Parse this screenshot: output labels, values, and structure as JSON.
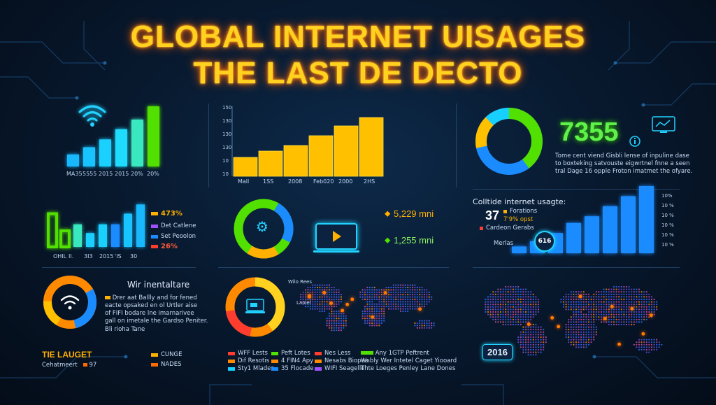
{
  "title": {
    "line1": "GLOBAL INTERNET  UISAGES",
    "line2": "THE LAST DE DECTO"
  },
  "colors": {
    "accent": "#ffd21f",
    "cyan": "#18d0ff",
    "green": "#52e000",
    "blue": "#1a8cff",
    "orange": "#ff8a00",
    "red": "#ff3d2e"
  },
  "panel_a": {
    "icon": "wifi-icon",
    "bar_values": [
      0.2,
      0.32,
      0.45,
      0.62,
      0.78,
      1.0
    ],
    "labels": [
      "MA35",
      "5555",
      "2015",
      "2015",
      "20%",
      "20%"
    ]
  },
  "panel_b": {
    "ticks": [
      "150",
      "130",
      "130",
      "130",
      "10",
      "10"
    ],
    "bar_values": [
      0.27,
      0.36,
      0.44,
      0.58,
      0.72,
      0.84
    ],
    "labels": [
      "Mall",
      "1SS",
      "2008",
      "Feb020",
      "2000",
      "2HS"
    ]
  },
  "panel_c": {
    "number": "7355",
    "text": [
      "Tome cent viend Gisbli lense of inpuline dase",
      "to boxteking satvouste eigwrtnel fnne a seen",
      "tral Dage 16 opple Froton imatmet the ofyare."
    ]
  },
  "panel_d": {
    "bar_values": [
      0.75,
      0.38,
      0.52,
      0.33,
      0.52,
      0.52,
      0.75,
      0.95
    ],
    "labels": [
      "OHIL",
      "II.",
      "3I3",
      "2015",
      "'IS",
      "30"
    ],
    "legend": [
      {
        "pct": "473%",
        "color": "#ffb000"
      },
      {
        "text": "Det Catlene",
        "color": "#a050ff"
      },
      {
        "text": "Set Peoolon",
        "color": "#1a8cff"
      },
      {
        "pct": "26%",
        "color": "#ff3d2e"
      }
    ]
  },
  "panel_e": {
    "icon": "gear-icon",
    "stat1": "5,229 mni",
    "stat2": "1,255 mni",
    "screen_icon": "play-icon"
  },
  "panel_f": {
    "title": "Colltide internet usagte:",
    "number": "37",
    "legend": [
      "Forations",
      "7'9% opst",
      "Cardeon Gerabs"
    ],
    "sub": "Merlas",
    "badge": "616",
    "bar_values": [
      0.1,
      0.18,
      0.3,
      0.45,
      0.55,
      0.7,
      0.85,
      1.0
    ],
    "ticks": [
      "10%",
      "10 %",
      "10 %",
      "10 %",
      "10 %",
      "10 %"
    ]
  },
  "panel_g": {
    "title": "Wir inentaltare",
    "text": [
      "Drer aat Ballly and for fened",
      "eacte opsaked en ol Urtler aise",
      "of FIFI bodare lne imarnarivee",
      "gall on imetale the Gardso Peniter."
    ],
    "small": "Bli rioha Tane"
  },
  "panel_h": {
    "map_labels": [
      "Wilo Rees",
      "Laoiel"
    ],
    "icon": "laptop-icon"
  },
  "panel_i": {
    "badge": "2016"
  },
  "bottom_left": {
    "title": "TIE LAUGET",
    "sub": "Cehatmeert",
    "sub_val": "97",
    "legend": [
      {
        "text": "CUNGE",
        "color": "#ffb000"
      },
      {
        "text": "NADES",
        "color": "#ff6a00"
      }
    ]
  },
  "bottom_mid": {
    "legend": [
      {
        "text": "WFF Lests",
        "color": "#ff3d2e"
      },
      {
        "text": "Dif Resotis",
        "color": "#ff8a00"
      },
      {
        "text": "Sty1 Mlades",
        "color": "#18d0ff"
      },
      {
        "text": "Peft Lotes",
        "color": "#52e000"
      },
      {
        "text": "4 FIN4 Apy",
        "color": "#ff8a00"
      },
      {
        "text": "35 Flocade",
        "color": "#1a8cff"
      },
      {
        "text": "Nes Less",
        "color": "#ff3d2e"
      },
      {
        "text": "Nesabs Biopes",
        "color": "#ff8a00"
      },
      {
        "text": "WIFI Seagelle",
        "color": "#a050ff"
      }
    ],
    "right_text": [
      "Any 1GTP Peftrent",
      "Wsbly Wer Intetel Caget Yiooard",
      "Thte Loeges Penley Lane Dones"
    ]
  }
}
